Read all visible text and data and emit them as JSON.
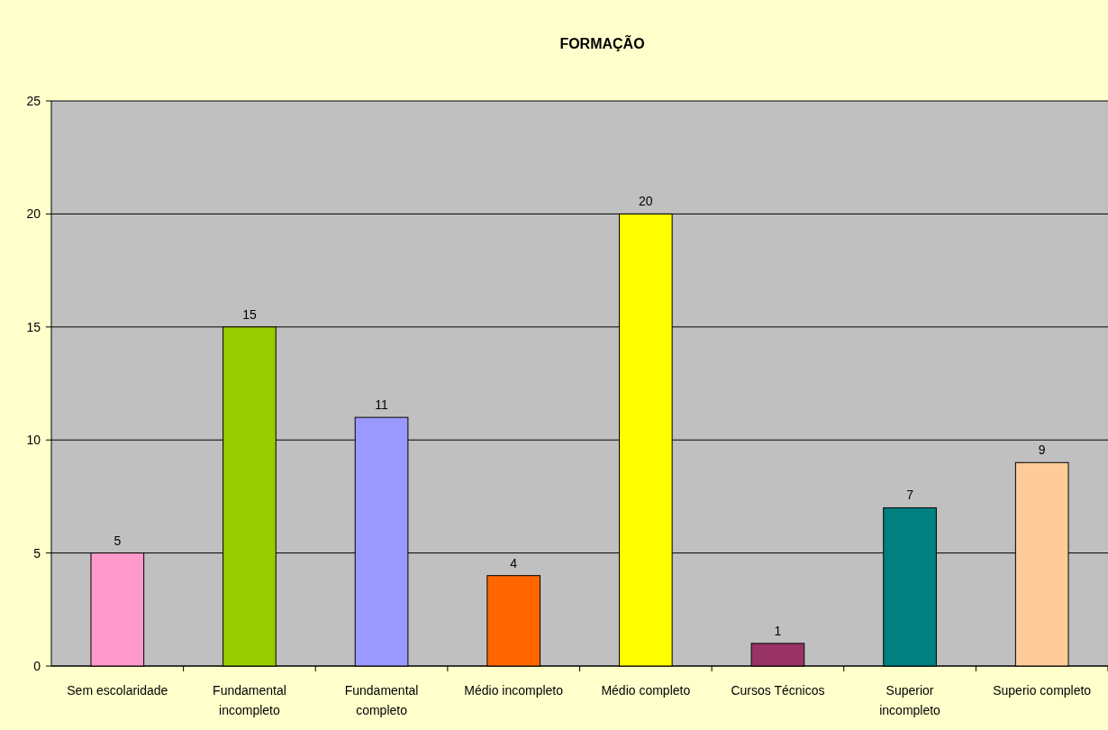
{
  "chart_data": {
    "type": "bar",
    "title": "FORMAÇÃO",
    "categories": [
      "Sem escolaridade",
      "Fundamental incompleto",
      "Fundamental completo",
      "Médio incompleto",
      "Médio completo",
      "Cursos Técnicos",
      "Superior incompleto",
      "Superio completo"
    ],
    "values": [
      5,
      15,
      11,
      4,
      20,
      1,
      7,
      9
    ],
    "colors": [
      "#ff99cc",
      "#99cc00",
      "#9999ff",
      "#ff6600",
      "#ffff00",
      "#993366",
      "#008080",
      "#ffcc99"
    ],
    "ylim": [
      0,
      25
    ],
    "yticks": [
      0,
      5,
      10,
      15,
      20,
      25
    ],
    "grid": "y",
    "data_labels": true
  }
}
